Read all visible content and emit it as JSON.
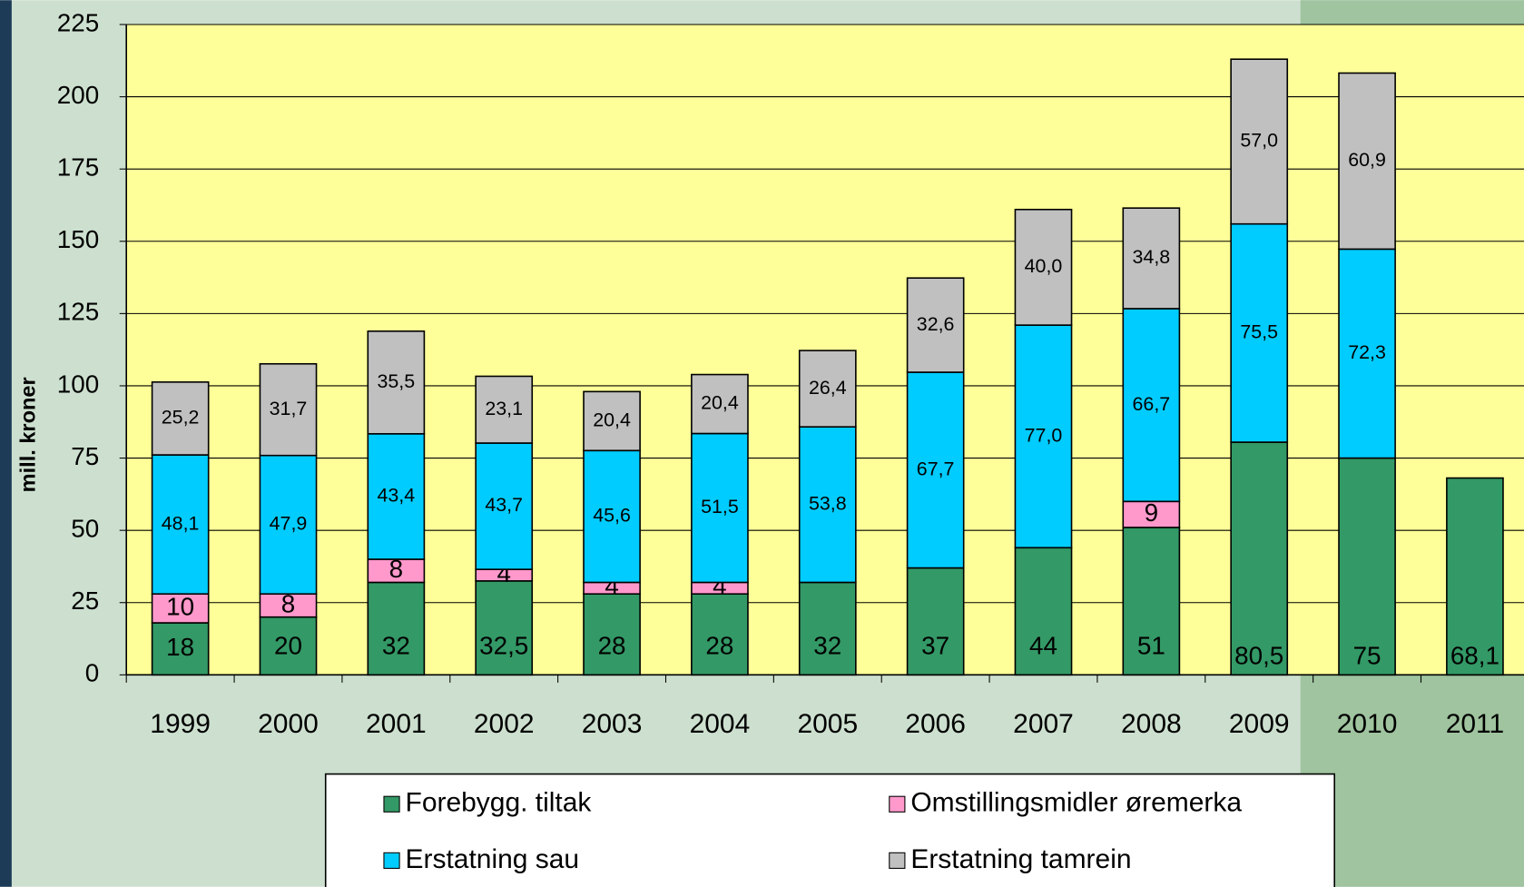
{
  "chart_data": {
    "type": "stacked_bar",
    "y_label": "mill. kroner",
    "categories": [
      "1999",
      "2000",
      "2001",
      "2002",
      "2003",
      "2004",
      "2005",
      "2006",
      "2007",
      "2008",
      "2009",
      "2010",
      "2011"
    ],
    "series": [
      {
        "name": "Forebygg. tiltak",
        "color": "#339966",
        "values": [
          18,
          20,
          32,
          32.5,
          28,
          28,
          32,
          37,
          44,
          51,
          80.5,
          75,
          68.1
        ],
        "value_labels": [
          "18",
          "20",
          "32",
          "32,5",
          "28",
          "28",
          "32",
          "37",
          "44",
          "51",
          "80,5",
          "75",
          "68,1"
        ]
      },
      {
        "name": "Omstillingsmidler øremerka",
        "color": "#ff99cc",
        "values": [
          10,
          8,
          8,
          4,
          4,
          4,
          null,
          null,
          null,
          9,
          null,
          null,
          null
        ],
        "value_labels": [
          "10",
          "8",
          "8",
          "4",
          "4",
          "4",
          null,
          null,
          null,
          "9",
          null,
          null,
          null
        ]
      },
      {
        "name": "Erstatning sau",
        "color": "#00ccff",
        "values": [
          48.1,
          47.9,
          43.4,
          43.7,
          45.6,
          51.5,
          53.8,
          67.7,
          77.0,
          66.7,
          75.5,
          72.3,
          null
        ],
        "value_labels": [
          "48,1",
          "47,9",
          "43,4",
          "43,7",
          "45,6",
          "51,5",
          "53,8",
          "67,7",
          "77,0",
          "66,7",
          "75,5",
          "72,3",
          null
        ]
      },
      {
        "name": "Erstatning tamrein",
        "color": "#c0c0c0",
        "values": [
          25.2,
          31.7,
          35.5,
          23.1,
          20.4,
          20.4,
          26.4,
          32.6,
          40.0,
          34.8,
          57.0,
          60.9,
          null
        ],
        "value_labels": [
          "25,2",
          "31,7",
          "35,5",
          "23,1",
          "20,4",
          "20,4",
          "26,4",
          "32,6",
          "40,0",
          "34,8",
          "57,0",
          "60,9",
          null
        ]
      }
    ],
    "ylim": [
      0,
      225
    ],
    "yticks": [
      0,
      25,
      50,
      75,
      100,
      125,
      150,
      175,
      200,
      225
    ],
    "grid": true,
    "legend": "bottom"
  }
}
